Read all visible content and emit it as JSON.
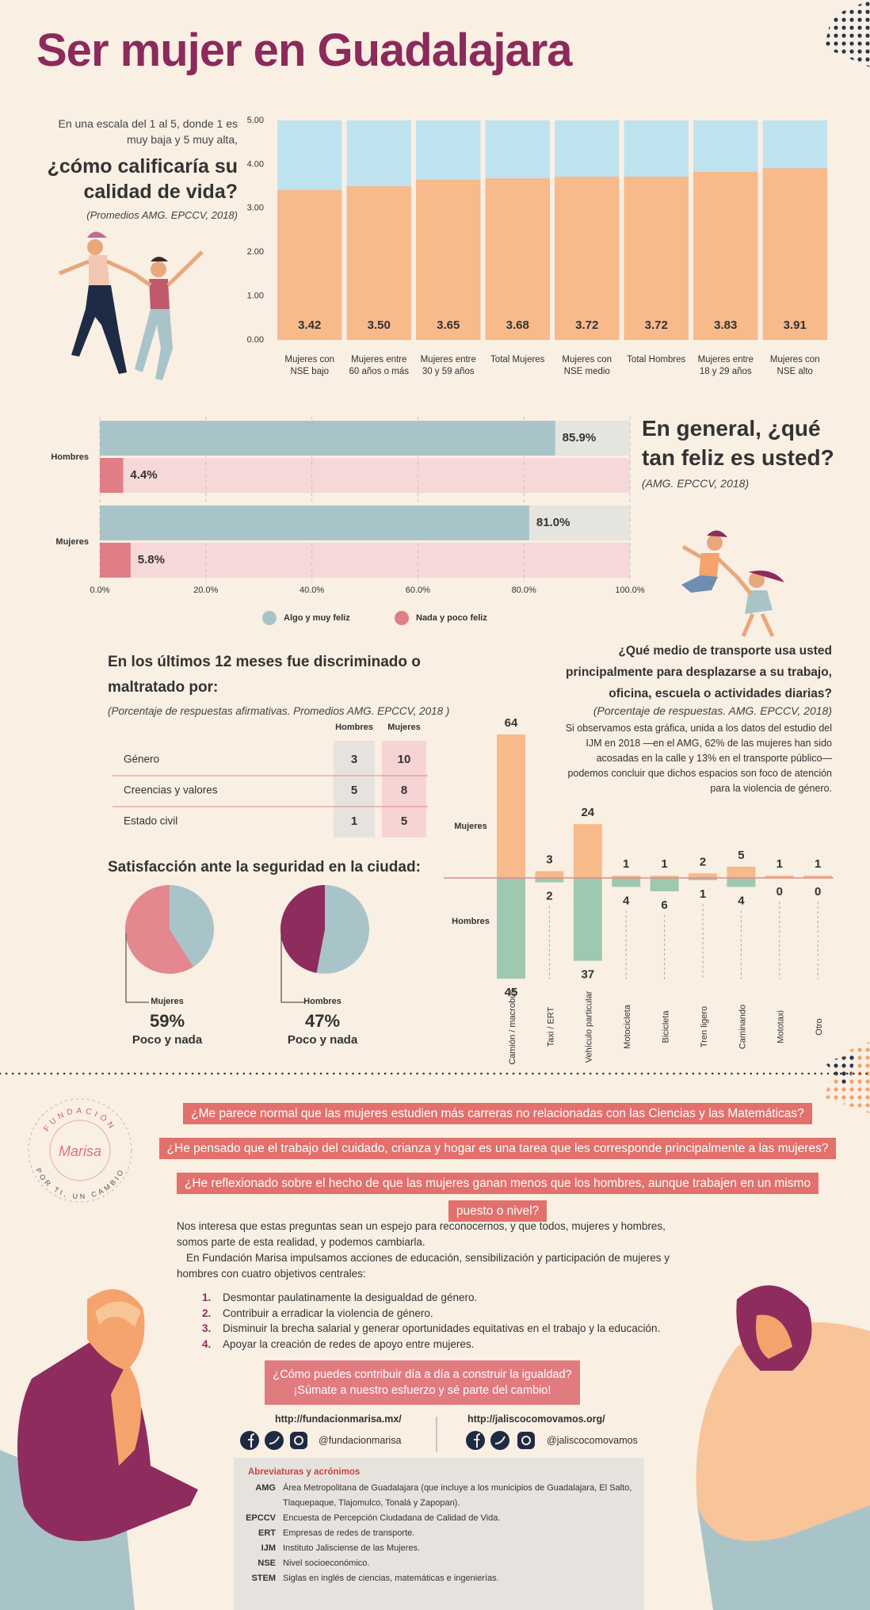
{
  "title": "Ser mujer en Guadalajara",
  "chart_data": [
    {
      "type": "bar",
      "intro": "En una escala del 1 al 5, donde 1 es muy baja y 5 muy alta,",
      "title": "¿cómo calificaría su calidad de vida?",
      "subtitle": "(Promedios AMG. EPCCV, 2018)",
      "categories": [
        "Mujeres con NSE bajo",
        "Mujeres entre 60 años o más",
        "Mujeres entre 30 y 59 años",
        "Total Mujeres",
        "Mujeres con NSE medio",
        "Total Hombres",
        "Mujeres entre 18 y 29 años",
        "Mujeres con NSE alto"
      ],
      "values": [
        3.42,
        3.5,
        3.65,
        3.68,
        3.72,
        3.72,
        3.83,
        3.91
      ],
      "value_labels": [
        "3.42",
        "3.50",
        "3.65",
        "3.68",
        "3.72",
        "3.72",
        "3.83",
        "3.91"
      ],
      "color": "#f8b98b",
      "track_color": "#bfe3ee",
      "ylim": [
        0,
        5
      ],
      "yticks": [
        {
          "value": 0,
          "label": "0.00"
        },
        {
          "value": 1,
          "label": "1.00"
        },
        {
          "value": 2,
          "label": "2.00"
        },
        {
          "value": 3,
          "label": "3.00"
        },
        {
          "value": 4,
          "label": "4.00"
        },
        {
          "value": 5,
          "label": "5.00"
        }
      ]
    },
    {
      "type": "hbar",
      "title": "En general, ¿qué tan feliz es usted?",
      "subtitle": "(AMG. EPCCV, 2018)",
      "categories": [
        "Hombres",
        "Mujeres"
      ],
      "series": [
        {
          "name": "Algo y muy feliz",
          "color": "#a9c4c9",
          "track_color": "#e6e4df",
          "values": [
            85.9,
            81.0
          ],
          "value_labels": [
            "85.9%",
            "81.0%"
          ]
        },
        {
          "name": "Nada y poco feliz",
          "color": "#e07e87",
          "track_color": "#f6d8d8",
          "values": [
            4.4,
            5.8
          ],
          "value_labels": [
            "4.4%",
            "5.8%"
          ]
        }
      ],
      "xlim": [
        0,
        100
      ],
      "xticks": [
        {
          "value": 0,
          "label": "0.0%"
        },
        {
          "value": 20,
          "label": "20.0%"
        },
        {
          "value": 40,
          "label": "40.0%"
        },
        {
          "value": 60,
          "label": "60.0%"
        },
        {
          "value": 80,
          "label": "80.0%"
        },
        {
          "value": 100,
          "label": "100.0%"
        }
      ],
      "grid": true,
      "legend": "bottom"
    },
    {
      "type": "pie",
      "title": "Satisfacción ante la seguridad en la ciudad:",
      "rest_color": "#a9c4c9",
      "pies": [
        {
          "name": "Mujeres",
          "categories": [
            "Poco y nada"
          ],
          "values": [
            59
          ],
          "value_labels": [
            "59%"
          ],
          "colors": [
            "#e3888f"
          ]
        },
        {
          "name": "Hombres",
          "categories": [
            "Poco y nada"
          ],
          "values": [
            47
          ],
          "value_labels": [
            "47%"
          ],
          "colors": [
            "#8e2c5e"
          ]
        }
      ]
    },
    {
      "type": "diverging_bar",
      "title": "¿Qué medio de transporte usa usted principalmente para desplazarse a su trabajo, oficina, escuela o actividades diarias?",
      "subtitle": "(Porcentaje de respuestas. AMG. EPCCV, 2018)",
      "note": "Si observamos esta gráfica, unida a los datos del estudio del IJM en 2018 —en el AMG, 62% de las mujeres han sido acosadas en la calle y 13% en el transporte público— podemos concluir que dichos espacios son foco de atención para la violencia de género.",
      "categories": [
        "Camión / macrobús",
        "Taxi / ERT",
        "Vehículo particular",
        "Motocicleta",
        "Bicicleta",
        "Tren ligero",
        "Caminando",
        "Mototaxi",
        "Otro"
      ],
      "series": [
        {
          "name": "Mujeres",
          "color": "#f8b98b",
          "values": [
            64,
            3,
            24,
            1,
            1,
            2,
            5,
            1,
            1
          ]
        },
        {
          "name": "Hombres",
          "color": "#9fc8b0",
          "values": [
            45,
            2,
            37,
            4,
            6,
            1,
            4,
            0,
            0
          ]
        }
      ]
    }
  ],
  "discrimination": {
    "title": "En los últimos 12 meses fue discriminado o maltratado por:",
    "subtitle": "(Porcentaje de respuestas afirmativas. Promedios AMG. EPCCV, 2018 )",
    "columns": [
      "Hombres",
      "Mujeres"
    ],
    "rows": [
      {
        "label": "Género",
        "values": [
          3,
          10
        ]
      },
      {
        "label": "Creencias y valores",
        "values": [
          5,
          8
        ]
      },
      {
        "label": "Estado civil",
        "values": [
          1,
          5
        ]
      }
    ]
  },
  "logo": {
    "name": "FUNDACIÓN",
    "brand": "Marisa",
    "tagline": "POR TI, UN CAMBIO"
  },
  "questions": [
    "¿Me parece normal que las mujeres estudien más carreras no relacionadas con las Ciencias y las Matemáticas?",
    "¿He pensado que el trabajo del cuidado, crianza y hogar es una tarea que les corresponde principalmente a las mujeres?",
    "¿He reflexionado sobre el hecho de que las mujeres ganan menos que los hombres, aunque trabajen en un mismo puesto o nivel?"
  ],
  "paragraphs": [
    "Nos interesa que estas preguntas sean un espejo para reconocernos, y que todos, mujeres y hombres, somos parte de esta realidad, y podemos cambiarla.",
    "En Fundación Marisa impulsamos acciones de educación, sensibilización y participación de mujeres y hombres con cuatro objetivos centrales:"
  ],
  "objectives": [
    {
      "number": "1.",
      "text": "Desmontar paulatinamente la desigualdad de género."
    },
    {
      "number": "2.",
      "text": "Contribuir a erradicar la violencia de género."
    },
    {
      "number": "3.",
      "text": "Disminuir la brecha salarial y generar oportunidades equitativas en el trabajo y la educación."
    },
    {
      "number": "4.",
      "text": "Apoyar la creación de redes de apoyo entre mujeres."
    }
  ],
  "cta": [
    "¿Cómo puedes contribuir día a día a construir la igualdad?",
    "¡Súmate a nuestro esfuerzo y sé parte del cambio!"
  ],
  "links": [
    {
      "url": "http://fundacionmarisa.mx/",
      "handle": "@fundacionmarisa"
    },
    {
      "url": "http://jaliscocomovamos.org/",
      "handle": "@jaliscocomovamos"
    }
  ],
  "abbreviations": {
    "title": "Abreviaturas y acrónimos",
    "items": [
      {
        "key": "AMG",
        "text": "Área Metropolitana de Guadalajara (que incluye a los municipios de Guadalajara, El Salto, Tlaquepaque, Tlajomulco, Tonalá y Zapopan)."
      },
      {
        "key": "EPCCV",
        "text": "Encuesta de Percepción Ciudadana de Calidad de Vida."
      },
      {
        "key": "ERT",
        "text": "Empresas de redes de transporte."
      },
      {
        "key": "IJM",
        "text": "Instituto Jalisciense de las Mujeres."
      },
      {
        "key": "NSE",
        "text": "Nivel socioeconómico."
      },
      {
        "key": "STEM",
        "text": "Siglas en inglés de ciencias, matemáticas e ingenierías."
      }
    ]
  }
}
